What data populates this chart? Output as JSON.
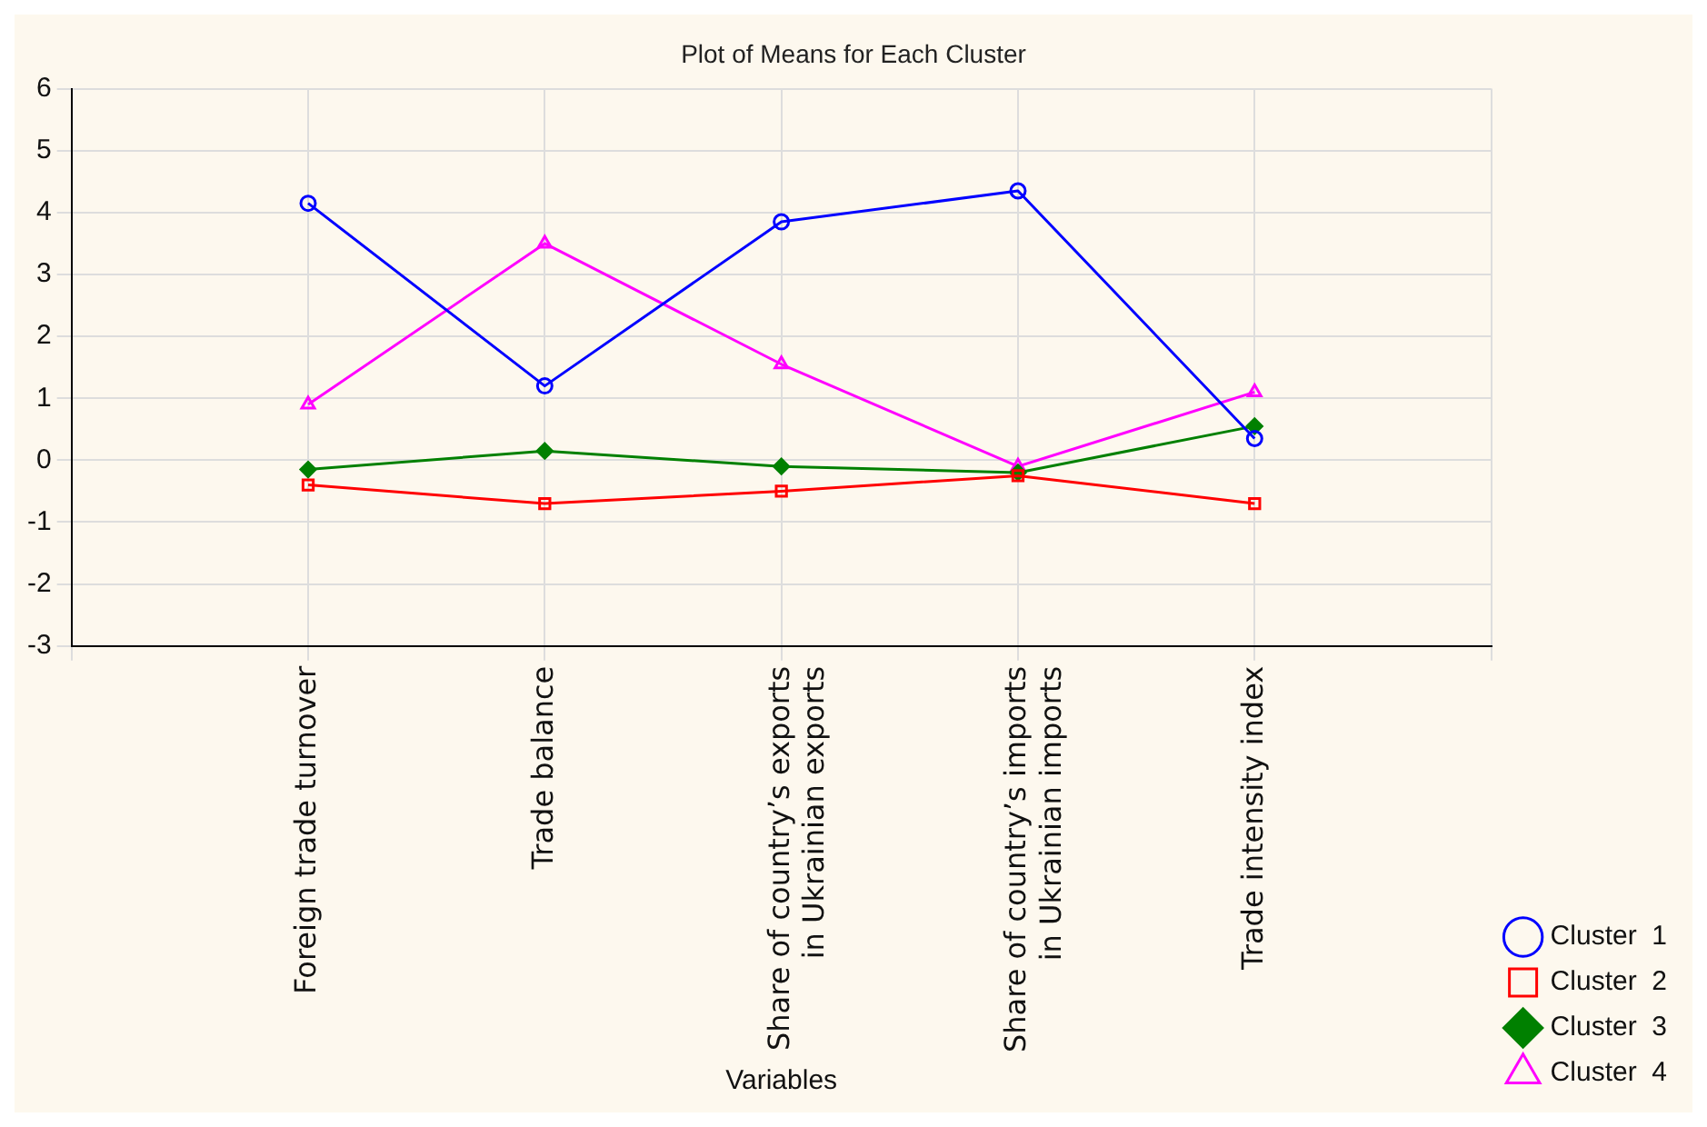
{
  "chart_data": {
    "type": "line",
    "title": "Plot of Means for Each Cluster",
    "xlabel": "Variables",
    "categories": [
      null,
      "Foreign trade turnover",
      "Trade balance",
      "Share of country’s exports in Ukrainian exports",
      "Share of country’s imports in Ukrainian imports",
      "Trade intensity index",
      null
    ],
    "series": [
      {
        "name": "Cluster  1",
        "color": "#0000ff",
        "marker": "circle",
        "values": [
          null,
          4.15,
          1.2,
          3.85,
          4.35,
          0.35,
          null
        ]
      },
      {
        "name": "Cluster  2",
        "color": "#ff0000",
        "marker": "square",
        "values": [
          null,
          -0.4,
          -0.7,
          -0.5,
          -0.25,
          -0.7,
          null
        ]
      },
      {
        "name": "Cluster  3",
        "color": "#008000",
        "marker": "diamond",
        "values": [
          null,
          -0.15,
          0.15,
          -0.1,
          -0.2,
          0.55,
          null
        ]
      },
      {
        "name": "Cluster  4",
        "color": "#ff00ff",
        "marker": "triangle",
        "values": [
          null,
          0.9,
          3.5,
          1.55,
          -0.1,
          1.1,
          null
        ]
      }
    ],
    "ylim": [
      -3,
      6
    ],
    "yticks": [
      -3,
      -2,
      -1,
      0,
      1,
      2,
      3,
      4,
      5,
      6
    ],
    "grid": true,
    "legend": "bottom right"
  }
}
